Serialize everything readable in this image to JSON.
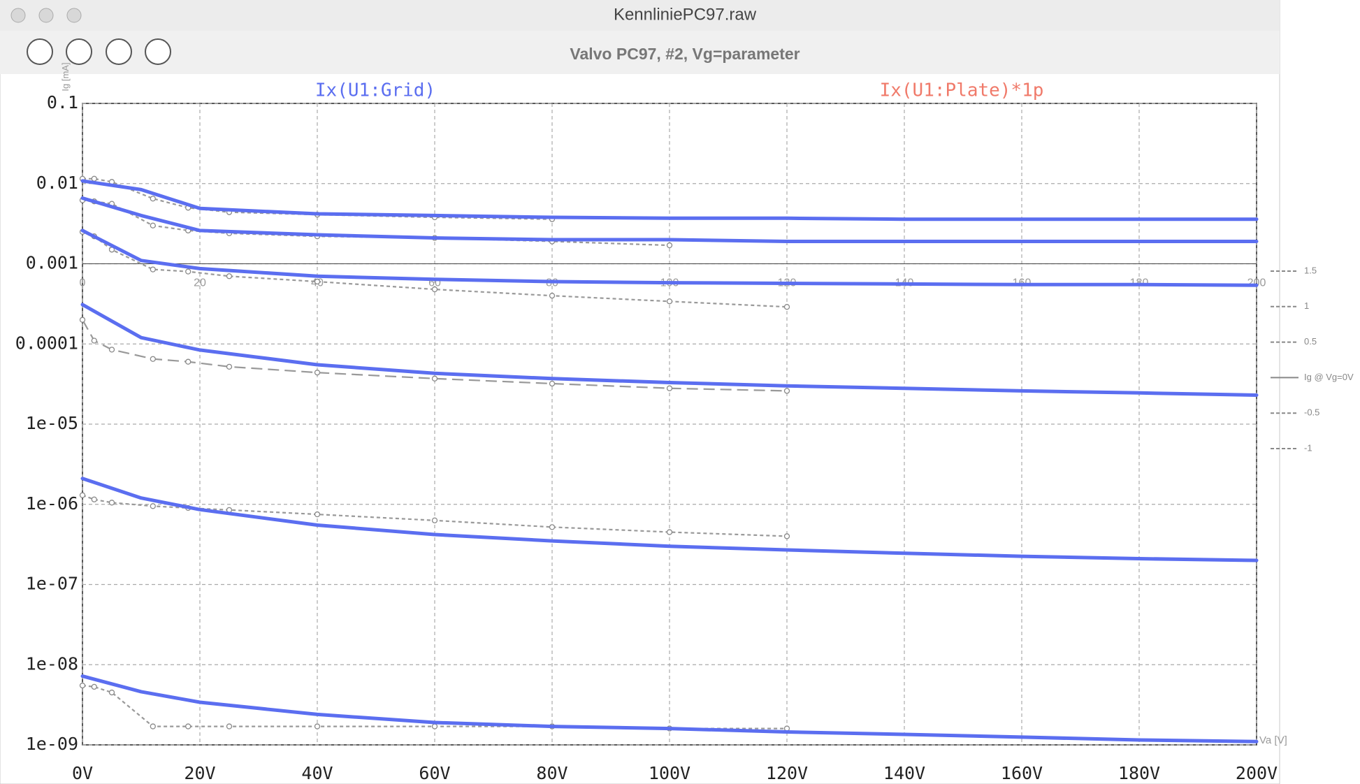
{
  "window": {
    "title": "KennliniePC97.raw"
  },
  "chart_data": {
    "type": "line",
    "title": "Valvo PC97, #2, Vg=parameter",
    "trace_labels": [
      {
        "text": "Ix(U1:Grid)",
        "color": "#5b6ef0"
      },
      {
        "text": "Ix(U1:Plate)*1p",
        "color": "#f07a6a"
      }
    ],
    "x": [
      0,
      10,
      20,
      40,
      60,
      80,
      100,
      120,
      140,
      160,
      180,
      200
    ],
    "series": [
      {
        "color": "#5b6ef0",
        "values": [
          0.0108,
          0.0084,
          0.0049,
          0.0042,
          0.004,
          0.0038,
          0.0037,
          0.0037,
          0.0036,
          0.0036,
          0.0036,
          0.0036
        ]
      },
      {
        "color": "#5b6ef0",
        "values": [
          0.0066,
          0.004,
          0.0026,
          0.0023,
          0.0021,
          0.002,
          0.002,
          0.0019,
          0.0019,
          0.0019,
          0.0019,
          0.0019
        ]
      },
      {
        "color": "#5b6ef0",
        "values": [
          0.0026,
          0.0011,
          0.00087,
          0.0007,
          0.00064,
          0.0006,
          0.00058,
          0.00057,
          0.00056,
          0.00055,
          0.00055,
          0.00054
        ]
      },
      {
        "color": "#5b6ef0",
        "values": [
          0.00031,
          0.00012,
          8.4e-05,
          5.5e-05,
          4.3e-05,
          3.7e-05,
          3.3e-05,
          3e-05,
          2.8e-05,
          2.6e-05,
          2.45e-05,
          2.3e-05
        ]
      },
      {
        "color": "#5b6ef0",
        "values": [
          2.1e-06,
          1.2e-06,
          8.6e-07,
          5.5e-07,
          4.2e-07,
          3.5e-07,
          3e-07,
          2.7e-07,
          2.45e-07,
          2.25e-07,
          2.1e-07,
          2e-07
        ]
      },
      {
        "color": "#5b6ef0",
        "values": [
          7.2e-09,
          4.6e-09,
          3.4e-09,
          2.4e-09,
          1.9e-09,
          1.7e-09,
          1.6e-09,
          1.45e-09,
          1.35e-09,
          1.25e-09,
          1.15e-09,
          1.1e-09
        ]
      }
    ],
    "measured_x": [
      0,
      2,
      5,
      12,
      18,
      25,
      40,
      60,
      80,
      100,
      120
    ],
    "measured_series": [
      {
        "name": "1.5",
        "color": "#999999",
        "values": [
          0.0115,
          0.0115,
          0.0105,
          0.0065,
          0.005,
          0.0044,
          0.0041,
          0.0038,
          0.0036,
          null,
          null
        ]
      },
      {
        "name": "1",
        "color": "#999999",
        "values": [
          0.0062,
          0.006,
          0.0056,
          0.003,
          0.0026,
          0.0024,
          0.0022,
          0.0021,
          0.0019,
          0.0017,
          null
        ]
      },
      {
        "name": "0.5",
        "color": "#999999",
        "values": [
          0.0025,
          0.0022,
          0.0015,
          0.00085,
          0.0008,
          0.0007,
          0.0006,
          0.00048,
          0.0004,
          0.00034,
          0.00029
        ]
      },
      {
        "name": "Ig @ Vg=0V",
        "color": "#999999",
        "values": [
          0.0002,
          0.00011,
          8.5e-05,
          6.5e-05,
          6e-05,
          5.2e-05,
          4.4e-05,
          3.7e-05,
          3.2e-05,
          2.8e-05,
          2.6e-05
        ]
      },
      {
        "name": "-0.5",
        "color": "#999999",
        "values": [
          1.3e-06,
          1.15e-06,
          1.05e-06,
          9.5e-07,
          9e-07,
          8.5e-07,
          7.5e-07,
          6.3e-07,
          5.2e-07,
          4.5e-07,
          4e-07
        ]
      },
      {
        "name": "-1",
        "color": "#999999",
        "values": [
          5.5e-09,
          5.3e-09,
          4.5e-09,
          1.7e-09,
          1.7e-09,
          1.7e-09,
          1.7e-09,
          1.7e-09,
          1.7e-09,
          1.6e-09,
          1.6e-09
        ]
      }
    ],
    "overlay_xticks": [
      0,
      20,
      40,
      60,
      80,
      100,
      120,
      140,
      160,
      180,
      200
    ],
    "overlay_xlabel": "Va [V]",
    "overlay_ylabel": "Ig [mA]",
    "log_y": true,
    "grid": true,
    "xlim": [
      0,
      200
    ],
    "xticks": [
      {
        "value": 0,
        "label": "0V"
      },
      {
        "value": 20,
        "label": "20V"
      },
      {
        "value": 40,
        "label": "40V"
      },
      {
        "value": 60,
        "label": "60V"
      },
      {
        "value": 80,
        "label": "80V"
      },
      {
        "value": 100,
        "label": "100V"
      },
      {
        "value": 120,
        "label": "120V"
      },
      {
        "value": 140,
        "label": "140V"
      },
      {
        "value": 160,
        "label": "160V"
      },
      {
        "value": 180,
        "label": "180V"
      },
      {
        "value": 200,
        "label": "200V"
      }
    ],
    "ylim": [
      1e-09,
      0.1
    ],
    "yticks": [
      0.1,
      0.01,
      0.001,
      0.0001,
      {
        "value": 1e-05,
        "label": "1e-05"
      },
      {
        "value": 1e-06,
        "label": "1e-06"
      },
      {
        "value": 1e-07,
        "label": "1e-07"
      },
      {
        "value": 1e-08,
        "label": "1e-08"
      },
      {
        "value": 1e-09,
        "label": "1e-09"
      }
    ]
  }
}
